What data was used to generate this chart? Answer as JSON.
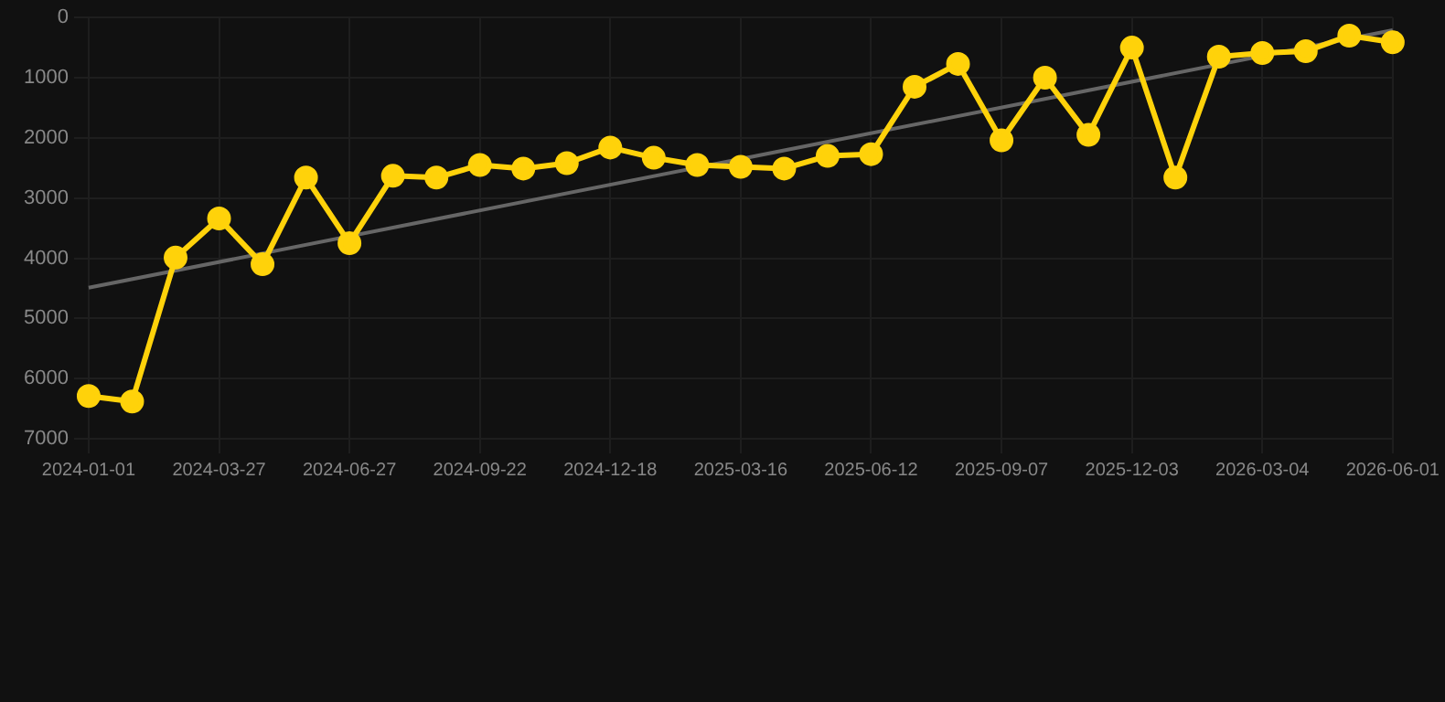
{
  "chart_data": {
    "type": "line",
    "categories": [
      "2024-01-01",
      null,
      null,
      "2024-03-27",
      null,
      null,
      "2024-06-27",
      null,
      null,
      "2024-09-22",
      null,
      null,
      "2024-12-18",
      null,
      null,
      "2025-03-16",
      null,
      null,
      "2025-06-12",
      null,
      null,
      "2025-09-07",
      null,
      null,
      "2025-12-03",
      null,
      null,
      "2026-03-04",
      null,
      null,
      "2026-06-01"
    ],
    "series": [
      {
        "color": "#ffd20a",
        "marker": "circle",
        "values": [
          6290,
          6380,
          3990,
          3340,
          4100,
          2660,
          3750,
          2630,
          2660,
          2450,
          2510,
          2420,
          2160,
          2330,
          2450,
          2480,
          2510,
          2300,
          2270,
          1150,
          770,
          2040,
          1000,
          1950,
          500,
          2660,
          650,
          590,
          560,
          300,
          410
        ]
      },
      {
        "type": "line",
        "color": "#666666",
        "marker": "none",
        "values": [
          4490,
          null,
          null,
          null,
          null,
          null,
          null,
          null,
          null,
          null,
          null,
          null,
          null,
          null,
          null,
          null,
          null,
          null,
          null,
          null,
          null,
          null,
          null,
          null,
          null,
          null,
          null,
          null,
          null,
          null,
          210
        ]
      }
    ],
    "ylim": [
      7000,
      0
    ],
    "yticks": [
      0,
      1000,
      2000,
      3000,
      4000,
      5000,
      6000,
      7000
    ],
    "grid": true,
    "legend": false
  }
}
